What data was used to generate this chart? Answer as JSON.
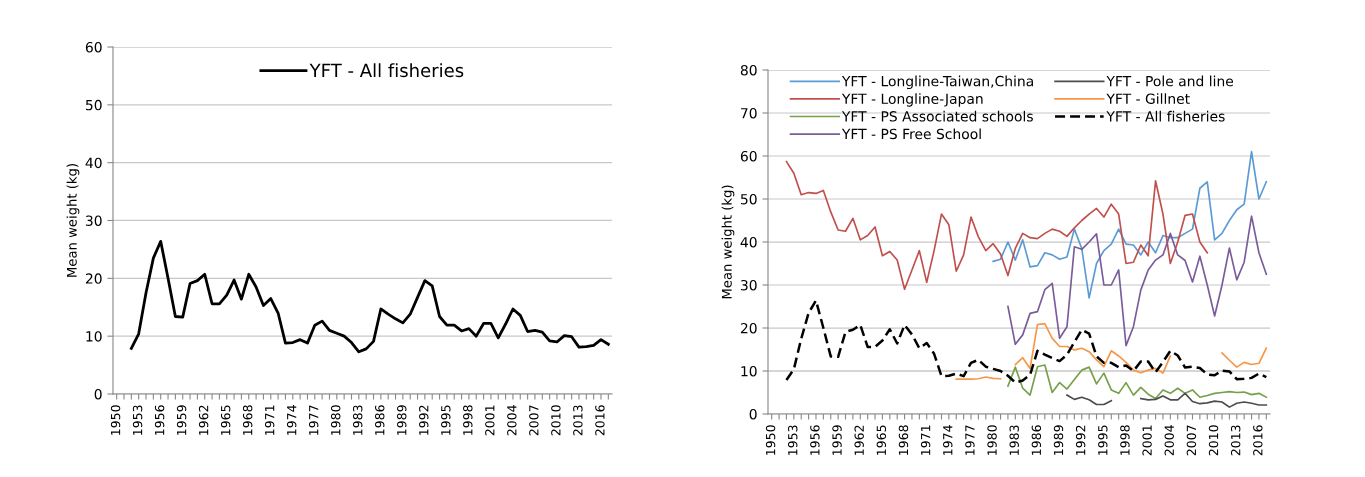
{
  "chart_data": [
    {
      "type": "line",
      "ylabel": "Mean weight (kg)",
      "xlim": [
        1949.5,
        2017.5
      ],
      "ylim": [
        0,
        60
      ],
      "yticks": [
        0,
        10,
        20,
        30,
        40,
        50,
        60
      ],
      "grid": "y",
      "legend": "top",
      "xticks": [
        1950,
        {
          "value": 1951,
          "label": null
        },
        {
          "value": 1952,
          "label": null
        },
        1953,
        {
          "value": 1954,
          "label": null
        },
        {
          "value": 1955,
          "label": null
        },
        1956,
        {
          "value": 1957,
          "label": null
        },
        {
          "value": 1958,
          "label": null
        },
        1959,
        {
          "value": 1960,
          "label": null
        },
        {
          "value": 1961,
          "label": null
        },
        1962,
        {
          "value": 1963,
          "label": null
        },
        {
          "value": 1964,
          "label": null
        },
        1965,
        {
          "value": 1966,
          "label": null
        },
        {
          "value": 1967,
          "label": null
        },
        1968,
        {
          "value": 1969,
          "label": null
        },
        {
          "value": 1970,
          "label": null
        },
        1971,
        {
          "value": 1972,
          "label": null
        },
        {
          "value": 1973,
          "label": null
        },
        1974,
        {
          "value": 1975,
          "label": null
        },
        {
          "value": 1976,
          "label": null
        },
        1977,
        {
          "value": 1978,
          "label": null
        },
        {
          "value": 1979,
          "label": null
        },
        1980,
        {
          "value": 1981,
          "label": null
        },
        {
          "value": 1982,
          "label": null
        },
        1983,
        {
          "value": 1984,
          "label": null
        },
        {
          "value": 1985,
          "label": null
        },
        1986,
        {
          "value": 1987,
          "label": null
        },
        {
          "value": 1988,
          "label": null
        },
        1989,
        {
          "value": 1990,
          "label": null
        },
        {
          "value": 1991,
          "label": null
        },
        1992,
        {
          "value": 1993,
          "label": null
        },
        {
          "value": 1994,
          "label": null
        },
        1995,
        {
          "value": 1996,
          "label": null
        },
        {
          "value": 1997,
          "label": null
        },
        1998,
        {
          "value": 1999,
          "label": null
        },
        {
          "value": 2000,
          "label": null
        },
        2001,
        {
          "value": 2002,
          "label": null
        },
        {
          "value": 2003,
          "label": null
        },
        2004,
        {
          "value": 2005,
          "label": null
        },
        {
          "value": 2006,
          "label": null
        },
        2007,
        {
          "value": 2008,
          "label": null
        },
        {
          "value": 2009,
          "label": null
        },
        2010,
        {
          "value": 2011,
          "label": null
        },
        {
          "value": 2012,
          "label": null
        },
        2013,
        {
          "value": 2014,
          "label": null
        },
        {
          "value": 2015,
          "label": null
        },
        2016,
        {
          "value": 2017,
          "label": null
        }
      ],
      "series": [
        {
          "name": "YFT - All fisheries",
          "color": "#000000",
          "line_style": "solid",
          "x": [
            1952,
            1953,
            1954,
            1955,
            1956,
            1957,
            1958,
            1959,
            1960,
            1961,
            1962,
            1963,
            1964,
            1965,
            1966,
            1967,
            1968,
            1969,
            1970,
            1971,
            1972,
            1973,
            1974,
            1975,
            1976,
            1977,
            1978,
            1979,
            1980,
            1981,
            1982,
            1983,
            1984,
            1985,
            1986,
            1987,
            1988,
            1989,
            1990,
            1991,
            1992,
            1993,
            1994,
            1995,
            1996,
            1997,
            1998,
            1999,
            2000,
            2001,
            2002,
            2003,
            2004,
            2005,
            2006,
            2007,
            2008,
            2009,
            2010,
            2011,
            2012,
            2013,
            2014,
            2015,
            2016,
            2017
          ],
          "values": [
            7.9,
            10.4,
            17.5,
            23.5,
            26.4,
            20,
            13.4,
            13.3,
            19.1,
            19.6,
            20.7,
            15.6,
            15.6,
            17.1,
            19.7,
            16.4,
            20.7,
            18.5,
            15.3,
            16.5,
            14.0,
            8.8,
            8.9,
            9.4,
            8.8,
            11.9,
            12.6,
            11.0,
            10.5,
            10.0,
            8.9,
            7.3,
            7.8,
            9.1,
            14.7,
            13.8,
            13.0,
            12.3,
            13.8,
            16.7,
            19.6,
            18.7,
            13.4,
            11.9,
            11.9,
            10.9,
            11.3,
            10.0,
            12.2,
            12.2,
            9.7,
            12.1,
            14.7,
            13.6,
            10.8,
            11.0,
            10.7,
            9.2,
            9.0,
            10.1,
            9.9,
            8.1,
            8.2,
            8.4,
            9.4,
            8.6
          ]
        }
      ]
    },
    {
      "type": "line",
      "ylabel": "Mean weight (kg)",
      "xlim": [
        1949.5,
        2017.5
      ],
      "ylim": [
        0,
        80
      ],
      "yticks": [
        0,
        10,
        20,
        30,
        40,
        50,
        60,
        70,
        80
      ],
      "grid": "y",
      "legend": "top left",
      "xticks": [
        1950,
        {
          "value": 1951,
          "label": null
        },
        {
          "value": 1952,
          "label": null
        },
        1953,
        {
          "value": 1954,
          "label": null
        },
        {
          "value": 1955,
          "label": null
        },
        1956,
        {
          "value": 1957,
          "label": null
        },
        {
          "value": 1958,
          "label": null
        },
        1959,
        {
          "value": 1960,
          "label": null
        },
        {
          "value": 1961,
          "label": null
        },
        1962,
        {
          "value": 1963,
          "label": null
        },
        {
          "value": 1964,
          "label": null
        },
        1965,
        {
          "value": 1966,
          "label": null
        },
        {
          "value": 1967,
          "label": null
        },
        1968,
        {
          "value": 1969,
          "label": null
        },
        {
          "value": 1970,
          "label": null
        },
        1971,
        {
          "value": 1972,
          "label": null
        },
        {
          "value": 1973,
          "label": null
        },
        1974,
        {
          "value": 1975,
          "label": null
        },
        {
          "value": 1976,
          "label": null
        },
        1977,
        {
          "value": 1978,
          "label": null
        },
        {
          "value": 1979,
          "label": null
        },
        1980,
        {
          "value": 1981,
          "label": null
        },
        {
          "value": 1982,
          "label": null
        },
        1983,
        {
          "value": 1984,
          "label": null
        },
        {
          "value": 1985,
          "label": null
        },
        1986,
        {
          "value": 1987,
          "label": null
        },
        {
          "value": 1988,
          "label": null
        },
        1989,
        {
          "value": 1990,
          "label": null
        },
        {
          "value": 1991,
          "label": null
        },
        1992,
        {
          "value": 1993,
          "label": null
        },
        {
          "value": 1994,
          "label": null
        },
        1995,
        {
          "value": 1996,
          "label": null
        },
        {
          "value": 1997,
          "label": null
        },
        1998,
        {
          "value": 1999,
          "label": null
        },
        {
          "value": 2000,
          "label": null
        },
        2001,
        {
          "value": 2002,
          "label": null
        },
        {
          "value": 2003,
          "label": null
        },
        2004,
        {
          "value": 2005,
          "label": null
        },
        {
          "value": 2006,
          "label": null
        },
        2007,
        {
          "value": 2008,
          "label": null
        },
        {
          "value": 2009,
          "label": null
        },
        2010,
        {
          "value": 2011,
          "label": null
        },
        {
          "value": 2012,
          "label": null
        },
        2013,
        {
          "value": 2014,
          "label": null
        },
        {
          "value": 2015,
          "label": null
        },
        2016,
        {
          "value": 2017,
          "label": null
        }
      ],
      "series": [
        {
          "name": "YFT - Longline-Taiwan,China",
          "color": "#5b9bd5",
          "line_style": "solid",
          "x": [
            1980,
            1981,
            1982,
            1983,
            1984,
            1985,
            1986,
            1987,
            1988,
            1989,
            1990,
            1991,
            1992,
            1993,
            1994,
            1995,
            1996,
            1997,
            1998,
            1999,
            2000,
            2001,
            2002,
            2003,
            2004,
            2005,
            2006,
            2007,
            2008,
            2009,
            2010,
            2011,
            2012,
            2013,
            2014,
            2015,
            2016,
            2017
          ],
          "values": [
            35.5,
            36,
            40,
            35.8,
            40.5,
            34.2,
            34.5,
            37.5,
            37,
            36,
            36.5,
            43,
            38.5,
            27,
            35,
            38,
            39.5,
            43,
            39.5,
            39.3,
            37,
            40,
            37.5,
            41.5,
            41,
            41,
            42,
            43,
            52.5,
            54,
            40.5,
            42,
            45,
            47.5,
            48.8,
            61,
            50,
            54
          ]
        },
        {
          "name": "YFT - Longline-Japan",
          "color": "#c0504d",
          "line_style": "solid",
          "x": [
            1952,
            1953,
            1954,
            1955,
            1956,
            1957,
            1958,
            1959,
            1960,
            1961,
            1962,
            1963,
            1964,
            1965,
            1966,
            1967,
            1968,
            1969,
            1970,
            1971,
            1972,
            1973,
            1974,
            1975,
            1976,
            1977,
            1978,
            1979,
            1980,
            1981,
            1982,
            1983,
            1984,
            1985,
            1986,
            1987,
            1988,
            1989,
            1990,
            1991,
            1992,
            1993,
            1994,
            1995,
            1996,
            1997,
            1998,
            1999,
            2000,
            2001,
            2002,
            2003,
            2004,
            2005,
            2006,
            2007,
            2008,
            2009
          ],
          "values": [
            58.7,
            56,
            51,
            51.5,
            51.3,
            52,
            47,
            42.8,
            42.5,
            45.5,
            40.5,
            41.5,
            43.5,
            36.8,
            37.8,
            35.8,
            29.0,
            33.5,
            38.0,
            30.6,
            38,
            46.5,
            44,
            33.2,
            37,
            45.8,
            41.2,
            38,
            39.6,
            37.2,
            32.2,
            38.5,
            42,
            41,
            40.8,
            42,
            43,
            42.5,
            41.3,
            43.3,
            45,
            46.5,
            47.8,
            45.8,
            48.8,
            46.5,
            35.0,
            35.3,
            39.3,
            36.8,
            54.2,
            46.5,
            35.0,
            40,
            46.2,
            46.5,
            40,
            37.5
          ]
        },
        {
          "name": "YFT - PS Associated schools",
          "color": "#77a04a",
          "line_style": "solid",
          "x": [
            1982,
            1983,
            1984,
            1985,
            1986,
            1987,
            1988,
            1989,
            1990,
            1991,
            1992,
            1993,
            1994,
            1995,
            1996,
            1997,
            1998,
            1999,
            2000,
            2001,
            2002,
            2003,
            2004,
            2005,
            2006,
            2007,
            2008,
            2009,
            2010,
            2011,
            2012,
            2013,
            2014,
            2015,
            2016,
            2017
          ],
          "values": [
            6.5,
            10.9,
            6,
            4.4,
            11,
            11.4,
            5,
            7.3,
            5.8,
            8,
            10.2,
            10.9,
            7,
            9.5,
            5.6,
            4.8,
            7.3,
            4.4,
            6.2,
            4.6,
            3.6,
            5.6,
            4.8,
            6,
            4.8,
            5.6,
            3.9,
            4.3,
            4.8,
            5,
            5.2,
            5,
            5.1,
            4.5,
            4.8,
            3.9
          ]
        },
        {
          "name": "YFT - PS Free School",
          "color": "#7a5c9a",
          "line_style": "solid",
          "x": [
            1982,
            1983,
            1984,
            1985,
            1986,
            1987,
            1988,
            1989,
            1990,
            1991,
            1992,
            1993,
            1994,
            1995,
            1996,
            1997,
            1998,
            1999,
            2000,
            2001,
            2002,
            2003,
            2004,
            2005,
            2006,
            2007,
            2008,
            2009,
            2010,
            2011,
            2012,
            2013,
            2014,
            2015,
            2016,
            2017
          ],
          "values": [
            25,
            16.2,
            18.4,
            23.4,
            23.8,
            28.9,
            30.4,
            17.6,
            20.3,
            38.9,
            38.3,
            40,
            41.9,
            30,
            30,
            33.5,
            15.9,
            20.3,
            28.8,
            33.5,
            35.8,
            37,
            42,
            37,
            35.7,
            30.7,
            36.7,
            30,
            22.8,
            30,
            38.6,
            31.2,
            35.3,
            46,
            37.5,
            32.5
          ]
        },
        {
          "name": "YFT - Pole and line",
          "color": "#4d4d4d",
          "line_style": "solid",
          "x": [
            1990,
            1991,
            1992,
            1993,
            1994,
            1995,
            1996,
            1997,
            1998,
            1999,
            2000,
            2001,
            2002,
            2003,
            2004,
            2005,
            2006,
            2007,
            2008,
            2009,
            2010,
            2011,
            2012,
            2013,
            2014,
            2015,
            2016,
            2017
          ],
          "values": [
            4.4,
            3.4,
            3.9,
            3.3,
            2.2,
            2.2,
            3.1,
            null,
            null,
            null,
            3.6,
            3.3,
            3.4,
            4.2,
            3.3,
            3.3,
            4.8,
            2.9,
            2.4,
            2.6,
            3,
            2.8,
            1.6,
            2.5,
            2.8,
            2.5,
            2.1,
            2.1
          ]
        },
        {
          "name": "YFT - Gillnet",
          "color": "#f79646",
          "line_style": "solid",
          "x": [
            1975,
            1976,
            1977,
            1978,
            1979,
            1980,
            1981,
            1982,
            1983,
            1984,
            1985,
            1986,
            1987,
            1988,
            1989,
            1990,
            1991,
            1992,
            1993,
            1994,
            1995,
            1996,
            1997,
            1998,
            1999,
            2000,
            2001,
            2002,
            2003,
            2004,
            2005,
            2006,
            2007,
            2008,
            2009,
            2010,
            2011,
            2012,
            2013,
            2014,
            2015,
            2016,
            2017
          ],
          "values": [
            8.1,
            8.1,
            8.1,
            8.2,
            8.6,
            8.3,
            8.2,
            null,
            11.5,
            13.1,
            10.6,
            20.8,
            21,
            17.6,
            15.7,
            15.7,
            14.9,
            15.3,
            14.5,
            12.6,
            11,
            14.7,
            13.5,
            12,
            10.2,
            9.6,
            10.2,
            10.6,
            9.5,
            13.5,
            null,
            null,
            null,
            null,
            null,
            null,
            14.2,
            12.5,
            10.9,
            12,
            11.5,
            11.8,
            15.3
          ]
        },
        {
          "name": "YFT - All fisheries",
          "color": "#000000",
          "line_style": "dashed",
          "x": [
            1952,
            1953,
            1954,
            1955,
            1956,
            1957,
            1958,
            1959,
            1960,
            1961,
            1962,
            1963,
            1964,
            1965,
            1966,
            1967,
            1968,
            1969,
            1970,
            1971,
            1972,
            1973,
            1974,
            1975,
            1976,
            1977,
            1978,
            1979,
            1980,
            1981,
            1982,
            1983,
            1984,
            1985,
            1986,
            1987,
            1988,
            1989,
            1990,
            1991,
            1992,
            1993,
            1994,
            1995,
            1996,
            1997,
            1998,
            1999,
            2000,
            2001,
            2002,
            2003,
            2004,
            2005,
            2006,
            2007,
            2008,
            2009,
            2010,
            2011,
            2012,
            2013,
            2014,
            2015,
            2016,
            2017
          ],
          "values": [
            7.9,
            10.4,
            17.5,
            23.5,
            26.4,
            20,
            13.4,
            13.3,
            19.1,
            19.6,
            20.7,
            15.6,
            15.6,
            17.1,
            19.7,
            16.4,
            20.7,
            18.5,
            15.3,
            16.5,
            14.0,
            8.8,
            8.9,
            9.4,
            8.8,
            11.9,
            12.6,
            11.0,
            10.5,
            10.0,
            8.9,
            7.3,
            7.8,
            9.1,
            14.7,
            13.8,
            13.0,
            12.3,
            13.8,
            16.7,
            19.6,
            18.7,
            13.4,
            11.9,
            11.9,
            10.9,
            11.3,
            10.0,
            12.2,
            12.2,
            9.7,
            12.1,
            14.7,
            13.6,
            10.8,
            11.0,
            10.7,
            9.2,
            9.0,
            10.1,
            9.9,
            8.1,
            8.2,
            8.4,
            9.4,
            8.6
          ]
        }
      ]
    }
  ]
}
